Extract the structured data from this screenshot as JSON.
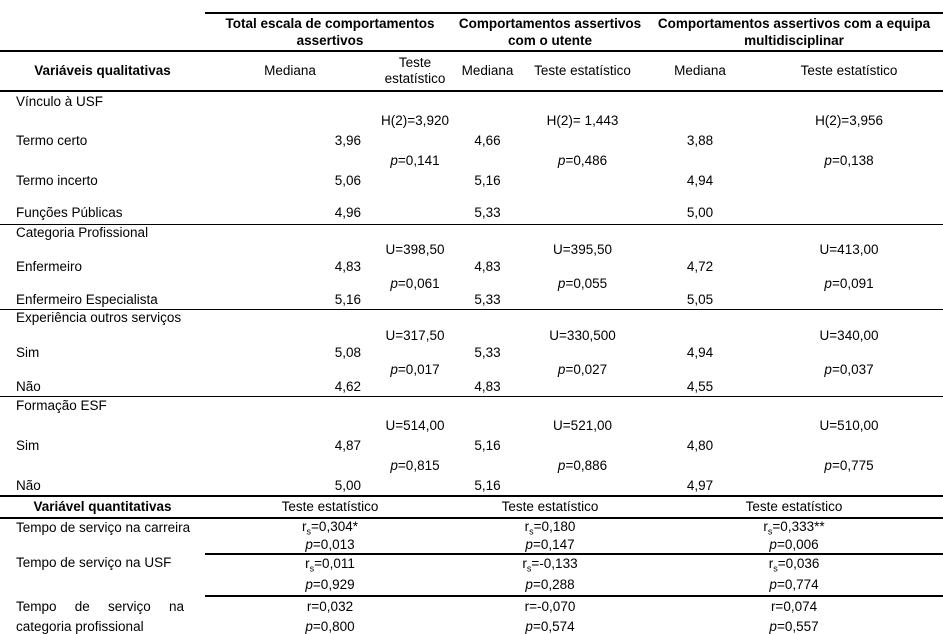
{
  "groups": [
    {
      "title": "Total escala de comportamentos assertivos"
    },
    {
      "title": "Comportamentos assertivos com o utente"
    },
    {
      "title": "Comportamentos assertivos com a equipa multidisciplinar"
    }
  ],
  "qualitative": {
    "header": "Variáveis qualitativas",
    "mediana_header": "Mediana",
    "teste_header": "Teste estatístico",
    "sections": [
      {
        "name": "Vínculo à USF",
        "tests": [
          "H(2)=3,920",
          "H(2)= 1,443",
          "H(2)=3,956"
        ],
        "pvalues": [
          "p=0,141",
          "p=0,486",
          "p=0,138"
        ],
        "rows": [
          {
            "label": "Termo certo",
            "medians": [
              "3,96",
              "4,66",
              "3,88"
            ]
          },
          {
            "label": "Termo incerto",
            "medians": [
              "5,06",
              "5,16",
              "4,94"
            ]
          },
          {
            "label": "Funções Públicas",
            "medians": [
              "4,96",
              "5,33",
              "5,00"
            ]
          }
        ]
      },
      {
        "name": "Categoria Profissional",
        "tests": [
          "U=398,50",
          "U=395,50",
          "U=413,00"
        ],
        "pvalues": [
          "p=0,061",
          "p=0,055",
          "p=0,091"
        ],
        "rows": [
          {
            "label": "Enfermeiro",
            "medians": [
              "4,83",
              "4,83",
              "4,72"
            ]
          },
          {
            "label": "Enfermeiro Especialista",
            "medians": [
              "5,16",
              "5,33",
              "5,05"
            ]
          }
        ]
      },
      {
        "name": "Experiência outros serviços",
        "tests": [
          "U=317,50",
          "U=330,500",
          "U=340,00"
        ],
        "pvalues": [
          "p=0,017",
          "p=0,027",
          "p=0,037"
        ],
        "rows": [
          {
            "label": "Sim",
            "medians": [
              "5,08",
              "5,33",
              "4,94"
            ]
          },
          {
            "label": "Não",
            "medians": [
              "4,62",
              "4,83",
              "4,55"
            ]
          }
        ]
      },
      {
        "name": "Formação ESF",
        "tests": [
          "U=514,00",
          "U=521,00",
          "U=510,00"
        ],
        "pvalues": [
          "p=0,815",
          "p=0,886",
          "p=0,775"
        ],
        "rows": [
          {
            "label": "Sim",
            "medians": [
              "4,87",
              "5,16",
              "4,80"
            ]
          },
          {
            "label": "Não",
            "medians": [
              "5,00",
              "5,16",
              "4,97"
            ]
          }
        ]
      }
    ]
  },
  "quantitative": {
    "header": "Variável quantitativas",
    "teste_header": "Teste estatístico",
    "rows": [
      {
        "label": "Tempo de serviço na carreira",
        "stats": [
          "rs=0,304*",
          "rs=0,180",
          "rs=0,333**"
        ],
        "pvalues": [
          "p=0,013",
          "p=0,147",
          "p=0,006"
        ]
      },
      {
        "label": "Tempo de serviço na USF",
        "stats": [
          "rs=0,011",
          "rs=-0,133",
          "rs=0,036"
        ],
        "pvalues": [
          "p=0,929",
          "p=0,288",
          "p=0,774"
        ]
      },
      {
        "label": "Tempo de serviço na categoria profissional",
        "stats": [
          "r=0,032",
          "r=-0,070",
          "r=0,074"
        ],
        "pvalues": [
          "p=0,800",
          "p=0,574",
          "p=0,557"
        ]
      }
    ]
  }
}
